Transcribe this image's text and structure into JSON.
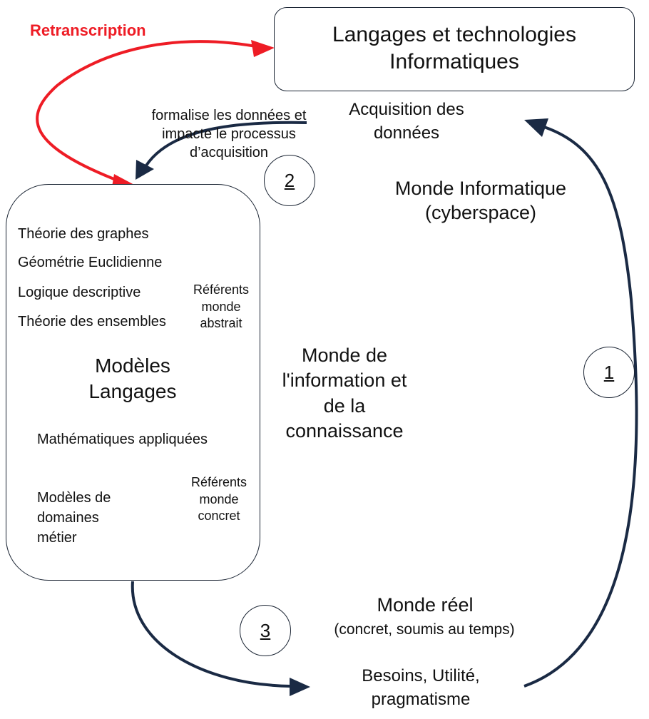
{
  "retranscription": "Retranscription",
  "tech_box": {
    "line1": "Langages et technologies",
    "line2": "Informatiques"
  },
  "acquisition": {
    "line1": "Acquisition des",
    "line2": "données"
  },
  "formalise": {
    "line1": "formalise les  données et",
    "line2": "impacte le processus",
    "line3": "d’acquisition"
  },
  "markers": {
    "one": "1",
    "two": "2",
    "three": "3"
  },
  "monde_informatique": {
    "line1": "Monde Informatique",
    "line2": "(cyberspace)"
  },
  "models_box": {
    "items": [
      "Théorie des graphes",
      "Géométrie Euclidienne",
      "Logique descriptive",
      "Théorie des ensembles"
    ],
    "referents_abstrait": {
      "line1": "Référents",
      "line2": "monde",
      "line3": "abstrait"
    },
    "title": {
      "line1": "Modèles",
      "line2": "Langages"
    },
    "maths": "Mathématiques appliquées",
    "domaines": {
      "line1": "Modèles de",
      "line2": "domaines",
      "line3": "métier"
    },
    "referents_concret": {
      "line1": "Référents",
      "line2": "monde",
      "line3": "concret"
    }
  },
  "monde_information": {
    "line1": "Monde de",
    "line2": "l'information  et",
    "line3": "de la",
    "line4": "connaissance"
  },
  "monde_reel": {
    "title": "Monde réel",
    "subtitle": "(concret, soumis au temps)"
  },
  "besoins": {
    "line1": "Besoins, Utilité,",
    "line2": "pragmatisme"
  },
  "colors": {
    "red_arrow": "#ee1c25",
    "dark_arrow": "#1a2a44"
  }
}
